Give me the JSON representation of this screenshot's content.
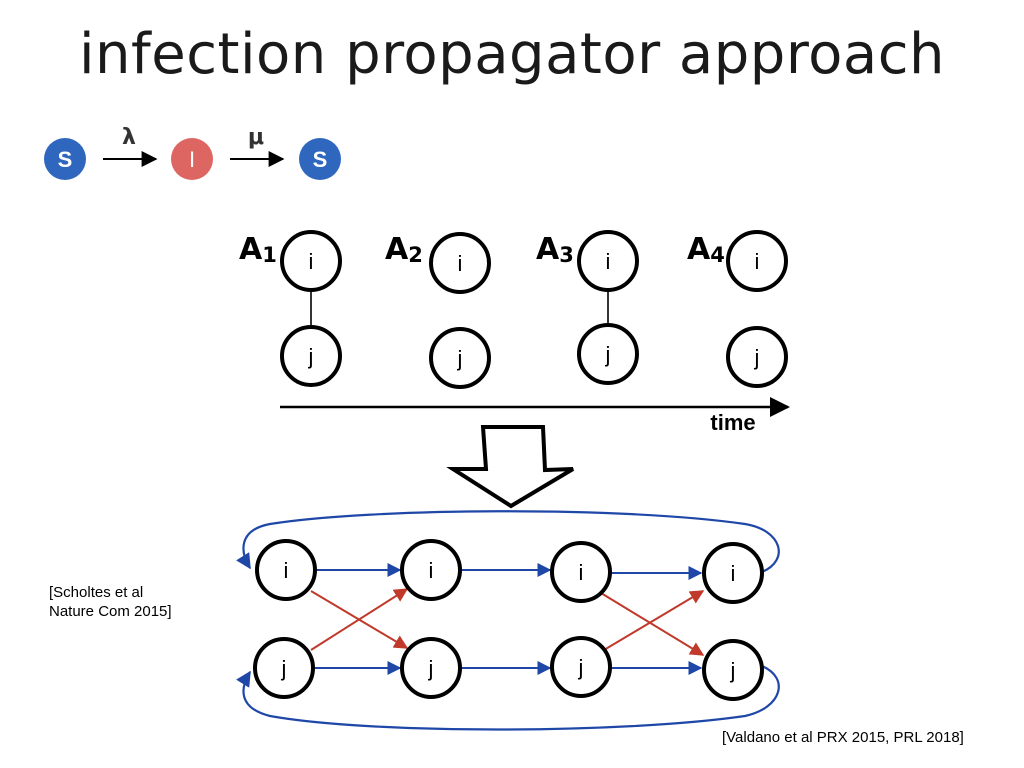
{
  "title": "infection propagator approach",
  "sis": {
    "states": [
      "S",
      "I",
      "S"
    ],
    "rates": [
      "λ",
      "μ"
    ],
    "colors": {
      "susceptible": "#2f67bf",
      "infected": "#dd6663"
    }
  },
  "snapshots": {
    "layers": [
      {
        "letter": "A",
        "sub": "1",
        "edge": true
      },
      {
        "letter": "A",
        "sub": "2",
        "edge": false
      },
      {
        "letter": "A",
        "sub": "3",
        "edge": true
      },
      {
        "letter": "A",
        "sub": "4",
        "edge": false
      }
    ],
    "node_top": "i",
    "node_bottom": "j",
    "time_label": "time"
  },
  "propagator": {
    "node_top": "i",
    "node_bottom": "j",
    "colors": {
      "persistence": "#1f47a8",
      "transmission": "#c0392b"
    }
  },
  "references": {
    "left_line1": "[Scholtes et al",
    "left_line2": "Nature Com 2015]",
    "right": "[Valdano et al PRX 2015, PRL 2018]"
  }
}
